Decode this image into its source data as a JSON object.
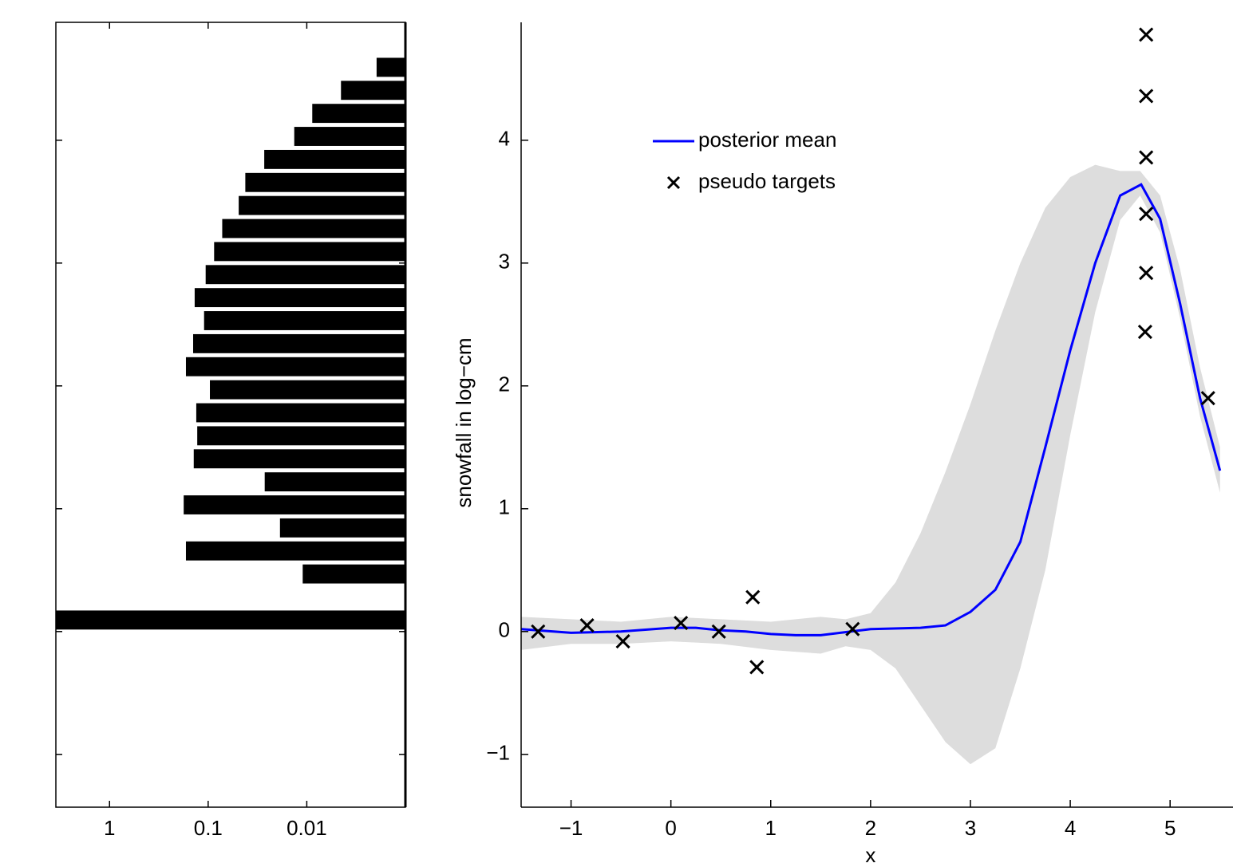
{
  "chart_data": [
    {
      "type": "histogram",
      "orientation": "horizontal",
      "color": "#000000",
      "xscale": "log",
      "bins": [
        0,
        0.1875,
        0.375,
        0.5625,
        0.75,
        0.9375,
        1.125,
        1.3125,
        1.5,
        1.6875,
        1.875,
        2.0625,
        2.25,
        2.4375,
        2.625,
        2.8125,
        3.0,
        3.1875,
        3.375,
        3.5625,
        3.75,
        3.9375,
        4.125,
        4.3125,
        4.5,
        4.6875
      ],
      "values": [
        3.5,
        0,
        0.011,
        0.168,
        0.0187,
        0.177,
        0.0267,
        0.14,
        0.129,
        0.132,
        0.096,
        0.168,
        0.142,
        0.11,
        0.137,
        0.106,
        0.087,
        0.072,
        0.049,
        0.042,
        0.027,
        0.0134,
        0.0088,
        0.0045,
        0.00196
      ],
      "xlim": [
        3.5,
        0.001
      ],
      "xticks": [
        1,
        0.1,
        0.01
      ],
      "ylim": [
        -1.43,
        4.96
      ],
      "yticks": [
        -1,
        0,
        1,
        2,
        3,
        4
      ],
      "yticklabels": false
    },
    {
      "type": "line",
      "xlabel": "x",
      "ylabel": "snowfall in log−cm",
      "legend": "upper left",
      "xlim": [
        -1.5,
        5.63
      ],
      "ylim": [
        -1.43,
        4.96
      ],
      "xticks": [
        {
          "value": -1,
          "label": "−1"
        },
        0,
        1,
        2,
        3,
        4,
        5
      ],
      "yticks": [
        {
          "value": -1,
          "label": "−1"
        },
        0,
        1,
        2,
        3,
        4
      ],
      "band": {
        "color": "#dddddd",
        "x": [
          -1.5,
          -1.0,
          -0.5,
          0,
          0.5,
          1.0,
          1.5,
          1.75,
          2.0,
          2.25,
          2.5,
          2.75,
          3.0,
          3.25,
          3.5,
          3.75,
          4.0,
          4.25,
          4.5,
          4.7,
          4.9,
          5.1,
          5.3,
          5.5
        ],
        "upper": [
          0.12,
          0.1,
          0.08,
          0.12,
          0.1,
          0.08,
          0.12,
          0.1,
          0.15,
          0.4,
          0.8,
          1.3,
          1.85,
          2.45,
          3.0,
          3.45,
          3.7,
          3.8,
          3.75,
          3.75,
          3.55,
          2.95,
          2.15,
          1.5
        ],
        "lower": [
          -0.15,
          -0.1,
          -0.1,
          -0.08,
          -0.1,
          -0.15,
          -0.18,
          -0.12,
          -0.15,
          -0.3,
          -0.6,
          -0.9,
          -1.08,
          -0.95,
          -0.3,
          0.5,
          1.6,
          2.6,
          3.35,
          3.55,
          3.25,
          2.55,
          1.75,
          1.13
        ]
      },
      "series": [
        {
          "name": "posterior mean",
          "type": "line",
          "color": "#0000ff",
          "x": [
            -1.5,
            -1.0,
            -0.5,
            0,
            0.25,
            0.5,
            0.75,
            1.0,
            1.25,
            1.5,
            2.0,
            2.5,
            2.75,
            3.0,
            3.25,
            3.5,
            3.75,
            4.0,
            4.25,
            4.5,
            4.71,
            4.9,
            5.1,
            5.3,
            5.5
          ],
          "values": [
            0.02,
            -0.01,
            0,
            0.03,
            0.03,
            0.01,
            0,
            -0.02,
            -0.03,
            -0.03,
            0.02,
            0.03,
            0.05,
            0.16,
            0.34,
            0.73,
            1.5,
            2.29,
            3.0,
            3.55,
            3.64,
            3.36,
            2.67,
            1.9,
            1.31
          ]
        },
        {
          "name": "pseudo targets",
          "type": "scatter",
          "color": "#000000",
          "x": [
            -1.33,
            -0.84,
            -0.48,
            0.1,
            0.48,
            0.82,
            0.86,
            1.82,
            4.76,
            4.76,
            4.76,
            4.76,
            4.76,
            4.75,
            5.38
          ],
          "values": [
            0.0,
            0.05,
            -0.08,
            0.07,
            0.0,
            0.28,
            -0.29,
            0.02,
            4.86,
            4.36,
            3.86,
            3.4,
            2.92,
            2.44,
            1.9
          ]
        }
      ]
    }
  ]
}
